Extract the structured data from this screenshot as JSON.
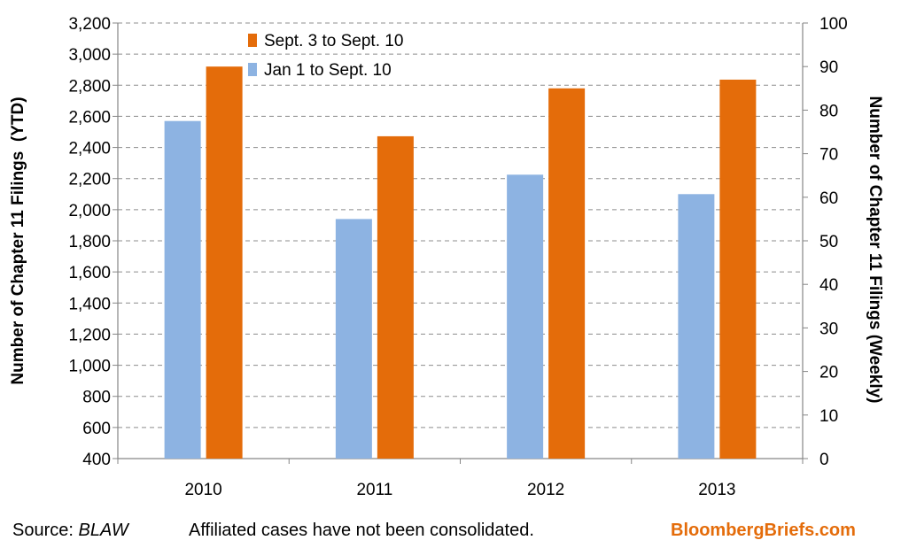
{
  "chart_data": {
    "type": "bar",
    "categories": [
      "2010",
      "2011",
      "2012",
      "2013"
    ],
    "series": [
      {
        "name": "Jan 1 to Sept. 10",
        "axis": "left",
        "color": "#8db3e2",
        "values": [
          2570,
          1940,
          2225,
          2100
        ]
      },
      {
        "name": "Sept. 3 to Sept. 10",
        "axis": "right",
        "color": "#e46c0a",
        "values": [
          90,
          74,
          85,
          87
        ]
      }
    ],
    "ylabel_left": "Number of Chapter 11 Filings  (YTD)",
    "ylabel_right": "Number of Chapter 11 Filings (Weekly)",
    "ylim_left": [
      400,
      3200
    ],
    "ylim_right": [
      0,
      100
    ],
    "yticks_left": [
      "400",
      "600",
      "800",
      "1,000",
      "1,200",
      "1,400",
      "1,600",
      "1,800",
      "2,000",
      "2,200",
      "2,400",
      "2,600",
      "2,800",
      "3,000",
      "3,200"
    ],
    "yticks_right": [
      "0",
      "10",
      "20",
      "30",
      "40",
      "50",
      "60",
      "70",
      "80",
      "90",
      "100"
    ],
    "grid": true,
    "legend_position": "top-left",
    "legend_order": [
      "Sept. 3 to Sept. 10",
      "Jan 1 to Sept. 10"
    ]
  },
  "footer": {
    "source_label": "Source: ",
    "source_name": "BLAW",
    "note": "Affiliated cases have not been consolidated.",
    "brand": "BloombergBriefs.com"
  }
}
